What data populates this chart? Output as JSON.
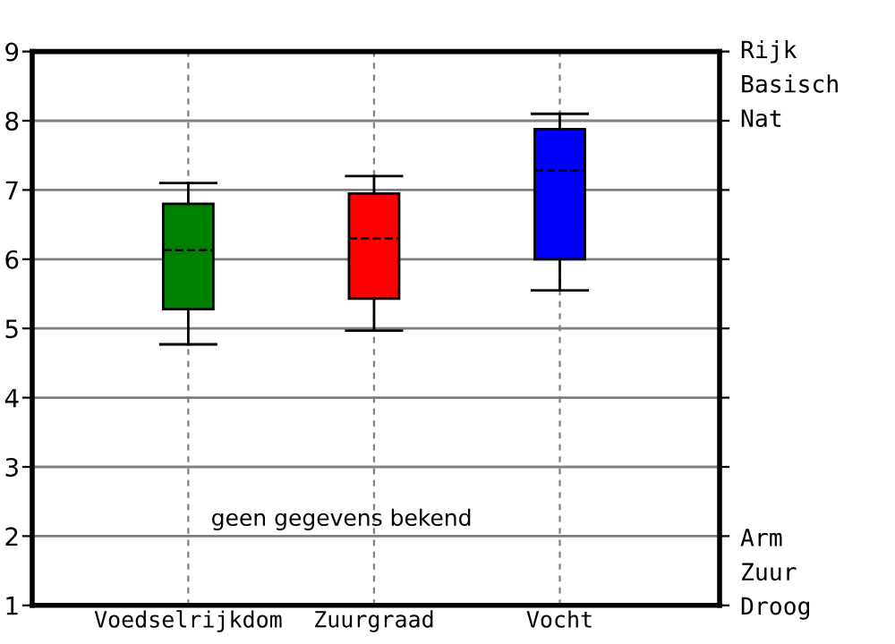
{
  "chart_data": {
    "type": "box",
    "categories": [
      "Voedselrijkdom",
      "Zuurgraad",
      "Vocht"
    ],
    "colors": [
      "#008000",
      "#ff0000",
      "#0000ff"
    ],
    "boxes": [
      {
        "low": 4.77,
        "q1": 5.28,
        "median": 6.13,
        "q3": 6.8,
        "high": 7.1
      },
      {
        "low": 4.97,
        "q1": 5.43,
        "median": 6.3,
        "q3": 6.95,
        "high": 7.2
      },
      {
        "low": 5.55,
        "q1": 6.0,
        "median": 7.28,
        "q3": 7.88,
        "high": 8.1
      }
    ],
    "ylim": [
      1,
      9
    ],
    "yticks": [
      1,
      2,
      3,
      4,
      5,
      6,
      7,
      8,
      9
    ],
    "grid": true,
    "annotations": [
      "geen gegevens bekend",
      "Rijk",
      "Basisch",
      "Nat",
      "Arm",
      "Zuur",
      "Droog"
    ]
  }
}
